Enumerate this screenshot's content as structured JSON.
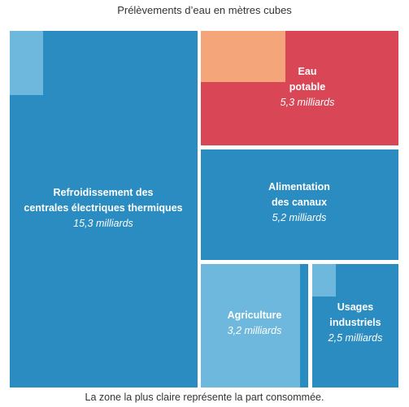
{
  "title": "Prélèvements d’eau en mètres cubes",
  "note": "La zone la plus claire représente la part consommée.",
  "colors": {
    "block_blue": "#2a8cc0",
    "consumed_blue": "#6db8dc",
    "block_red": "#d94655",
    "consumed_orange": "#f5a57a"
  },
  "chart_data": {
    "type": "treemap",
    "title": "Prélèvements d’eau en mètres cubes",
    "unit": "milliards de mètres cubes",
    "items": [
      {
        "id": "refroidissement",
        "label_lines": [
          "Refroidissement des",
          "centrales électriques thermiques"
        ],
        "value_label": "15,3 milliards",
        "value": 15.3,
        "consumed_share": 0.03,
        "color": "#2a8cc0",
        "consumed_color": "#6db8dc"
      },
      {
        "id": "eau_potable",
        "label_lines": [
          "Eau",
          "potable"
        ],
        "value_label": "5,3 milliards",
        "value": 5.3,
        "consumed_share": 0.25,
        "color": "#d94655",
        "consumed_color": "#f5a57a"
      },
      {
        "id": "canaux",
        "label_lines": [
          "Alimentation",
          "des canaux"
        ],
        "value_label": "5,2 milliards",
        "value": 5.2,
        "consumed_share": 0.0,
        "color": "#2a8cc0",
        "consumed_color": "#6db8dc"
      },
      {
        "id": "agriculture",
        "label_lines": [
          "Agriculture"
        ],
        "value_label": "3,2 milliards",
        "value": 3.2,
        "consumed_share": 0.85,
        "color": "#2a8cc0",
        "consumed_color": "#6db8dc"
      },
      {
        "id": "industriels",
        "label_lines": [
          "Usages",
          "industriels"
        ],
        "value_label": "2,5 milliards",
        "value": 2.5,
        "consumed_share": 0.06,
        "color": "#2a8cc0",
        "consumed_color": "#6db8dc"
      }
    ]
  }
}
